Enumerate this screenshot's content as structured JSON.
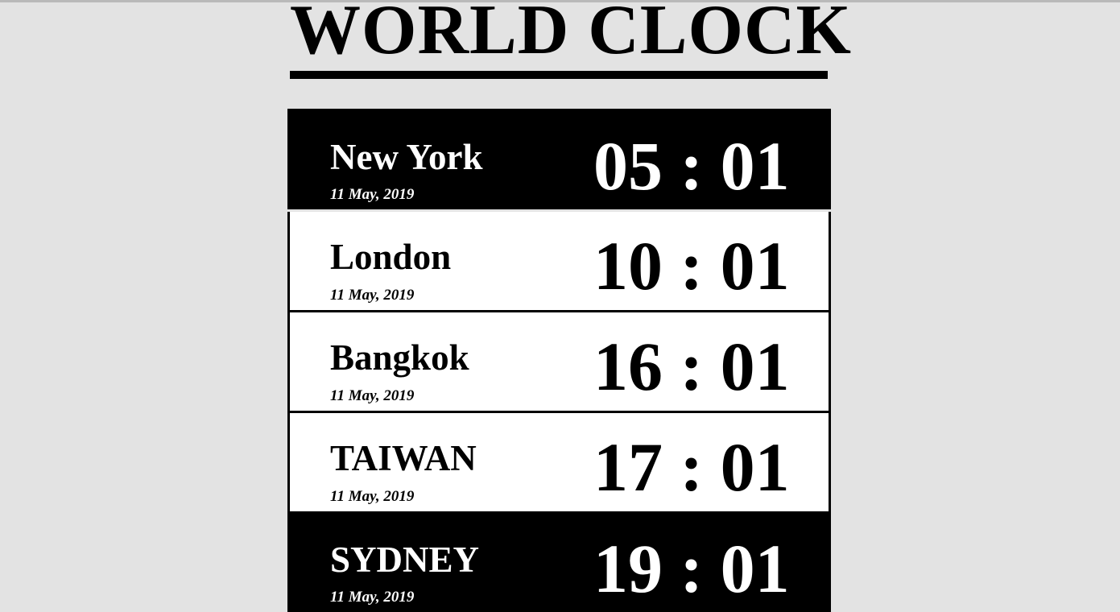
{
  "page": {
    "title": "WORLD CLOCK"
  },
  "clocks": [
    {
      "city": "New York",
      "date": "11 May, 2019",
      "time": "05 : 01",
      "theme": "dark"
    },
    {
      "city": "London",
      "date": "11 May, 2019",
      "time": "10 : 01",
      "theme": "light"
    },
    {
      "city": "Bangkok",
      "date": "11 May, 2019",
      "time": "16 : 01",
      "theme": "light"
    },
    {
      "city": "TAIWAN",
      "date": "11 May, 2019",
      "time": "17 : 01",
      "theme": "light"
    },
    {
      "city": "SYDNEY",
      "date": "11 May, 2019",
      "time": "19 : 01",
      "theme": "dark"
    }
  ],
  "colors": {
    "background": "#e3e3e3",
    "dark_row": "#000000",
    "light_row": "#ffffff",
    "text_on_dark": "#ffffff",
    "text_on_light": "#000000"
  }
}
